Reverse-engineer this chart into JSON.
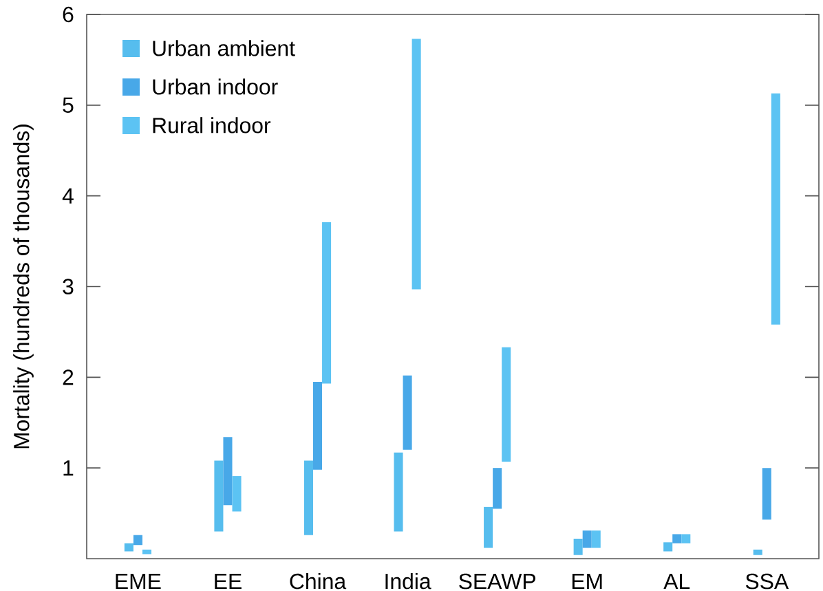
{
  "chart_data": {
    "type": "bar",
    "ylabel": "Mortality (hundreds of thousands)",
    "categories": [
      "EME",
      "EE",
      "China",
      "India",
      "SEAWP",
      "EM",
      "AL",
      "SSA"
    ],
    "series": [
      {
        "name": "Urban ambient",
        "color": "#56bdee",
        "base": [
          0.08,
          0.3,
          0.26,
          0.3,
          0.12,
          0.04,
          0.08,
          0.04
        ],
        "values": [
          0.09,
          0.78,
          0.82,
          0.87,
          0.45,
          0.18,
          0.1,
          0.06
        ]
      },
      {
        "name": "Urban indoor",
        "color": "#48a8e8",
        "base": [
          0.15,
          0.59,
          0.98,
          1.2,
          0.55,
          0.12,
          0.17,
          0.43
        ],
        "values": [
          0.11,
          0.75,
          0.97,
          0.82,
          0.45,
          0.19,
          0.1,
          0.57
        ]
      },
      {
        "name": "Rural indoor",
        "color": "#5cc3f3",
        "base": [
          0.05,
          0.52,
          1.93,
          2.97,
          1.07,
          0.12,
          0.17,
          2.58
        ],
        "values": [
          0.05,
          0.39,
          1.78,
          2.76,
          1.26,
          0.19,
          0.1,
          2.55
        ]
      }
    ],
    "ylim": [
      0,
      6
    ],
    "yticks": [
      1,
      2,
      3,
      4,
      5,
      6
    ],
    "legend": "top left"
  }
}
